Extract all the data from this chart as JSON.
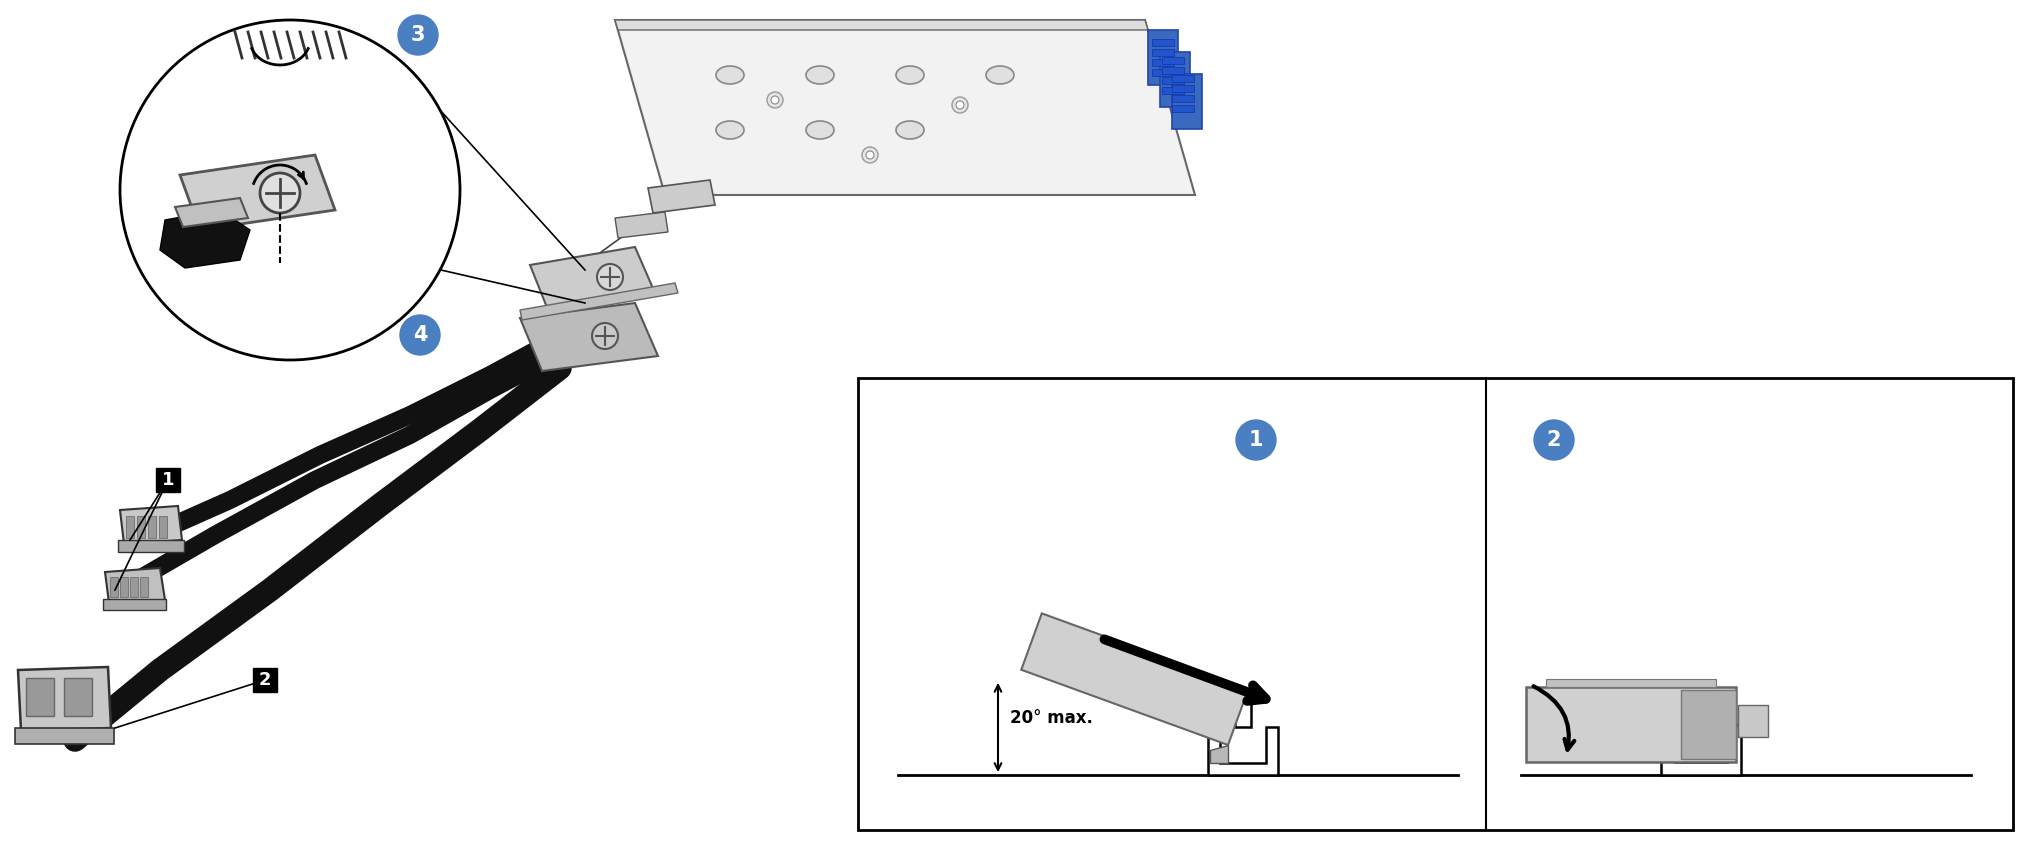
{
  "background_color": "#ffffff",
  "fig_width": 20.29,
  "fig_height": 8.52,
  "dpi": 100,
  "blue_circle_color": "#4a7fc2",
  "cable_color": "#111111",
  "gray_light": "#e8e8e8",
  "gray_mid": "#cccccc",
  "gray_dark": "#aaaaaa",
  "blue_conn": "#4466bb",
  "angle_text": "20° max.",
  "board_face": "#f4f4f4",
  "board_edge": "#555555"
}
